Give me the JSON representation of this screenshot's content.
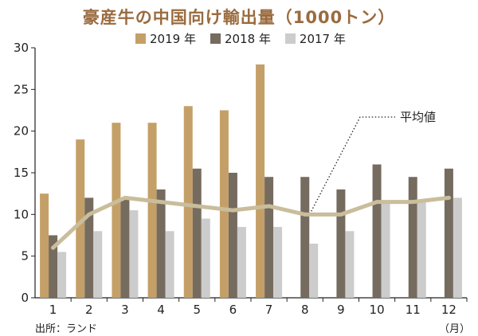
{
  "chart_data": {
    "type": "bar",
    "title": "豪産牛の中国向け輸出量（1000トン）",
    "categories": [
      "1",
      "2",
      "3",
      "4",
      "5",
      "6",
      "7",
      "8",
      "9",
      "10",
      "11",
      "12"
    ],
    "series": [
      {
        "name": "2019 年",
        "color": "#c4a068",
        "values": [
          12.5,
          19,
          21,
          21,
          23,
          22.5,
          28,
          null,
          null,
          null,
          null,
          null
        ]
      },
      {
        "name": "2018 年",
        "color": "#766b5f",
        "values": [
          7.5,
          12,
          12,
          13,
          15.5,
          15,
          14.5,
          14.5,
          13,
          16,
          14.5,
          15.5
        ]
      },
      {
        "name": "2017 年",
        "color": "#cccccc",
        "values": [
          5.5,
          8,
          10.5,
          8,
          9.5,
          8.5,
          8.5,
          6.5,
          8,
          11.5,
          11.5,
          12
        ]
      }
    ],
    "line": {
      "name": "平均値",
      "color": "#c9bd9b",
      "values": [
        6,
        10,
        12,
        11.5,
        11,
        10.5,
        11,
        10,
        10,
        11.5,
        11.5,
        12
      ]
    },
    "ylim": [
      0,
      30
    ],
    "yticks": [
      0,
      5,
      10,
      15,
      20,
      25,
      30
    ],
    "x_unit": "（月）",
    "source": "出所：ランド",
    "grid": false,
    "legend": "top"
  }
}
